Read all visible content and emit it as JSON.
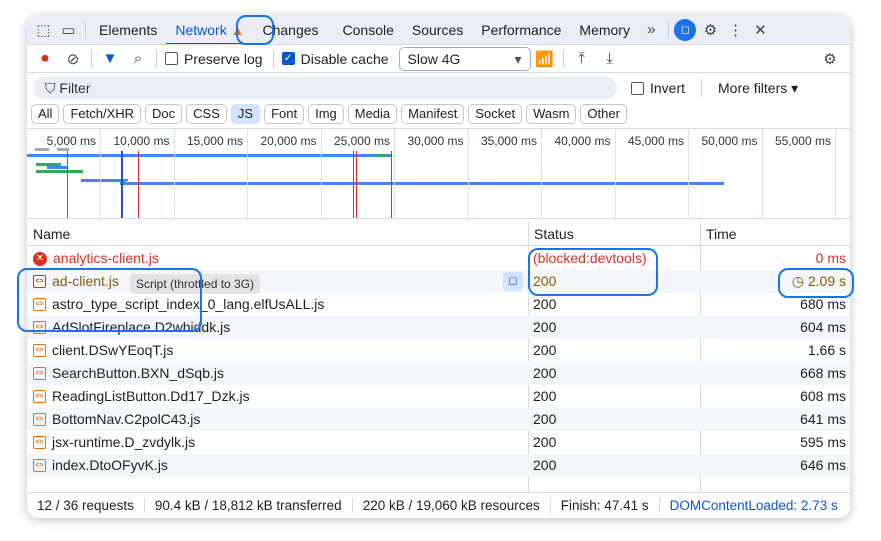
{
  "tabs": [
    "Elements",
    "Network",
    "Changes",
    "Console",
    "Sources",
    "Performance",
    "Memory"
  ],
  "active_tab": "Network",
  "toolbar": {
    "preserve_log": "Preserve log",
    "preserve_checked": false,
    "disable_cache": "Disable cache",
    "disable_checked": true,
    "throttle": "Slow 4G"
  },
  "filter": {
    "placeholder": "Filter",
    "invert": "Invert",
    "more_filters": "More filters"
  },
  "chips": [
    "All",
    "Fetch/XHR",
    "Doc",
    "CSS",
    "JS",
    "Font",
    "Img",
    "Media",
    "Manifest",
    "Socket",
    "Wasm",
    "Other"
  ],
  "active_chip": "JS",
  "overview_ticks": [
    "5,000 ms",
    "10,000 ms",
    "15,000 ms",
    "20,000 ms",
    "25,000 ms",
    "30,000 ms",
    "35,000 ms",
    "40,000 ms",
    "45,000 ms",
    "50,000 ms",
    "55,000 ms"
  ],
  "columns": {
    "name": "Name",
    "status": "Status",
    "time": "Time"
  },
  "rows": [
    {
      "name": "analytics-client.js",
      "status": "(blocked:devtools)",
      "time": "0 ms",
      "kind": "error"
    },
    {
      "name": "ad-client.js",
      "status": "200",
      "time": "2.09 s",
      "kind": "throttled"
    },
    {
      "name": "astro_type_script_index_0_lang.elfUsALL.js",
      "status": "200",
      "time": "680 ms",
      "kind": "script"
    },
    {
      "name": "AdSlotFireplace.D2whiddk.js",
      "status": "200",
      "time": "604 ms",
      "kind": "script"
    },
    {
      "name": "client.DSwYEoqT.js",
      "status": "200",
      "time": "1.66 s",
      "kind": "script"
    },
    {
      "name": "SearchButton.BXN_dSqb.js",
      "status": "200",
      "time": "668 ms",
      "kind": "script"
    },
    {
      "name": "ReadingListButton.Dd17_Dzk.js",
      "status": "200",
      "time": "608 ms",
      "kind": "script"
    },
    {
      "name": "BottomNav.C2polC43.js",
      "status": "200",
      "time": "641 ms",
      "kind": "script"
    },
    {
      "name": "jsx-runtime.D_zvdylk.js",
      "status": "200",
      "time": "595 ms",
      "kind": "script"
    },
    {
      "name": "index.DtoOFyvK.js",
      "status": "200",
      "time": "646 ms",
      "kind": "script"
    }
  ],
  "tooltip": "Script (throttled to 3G)",
  "footer": {
    "requests": "12 / 36 requests",
    "transferred": "90.4 kB / 18,812 kB transferred",
    "resources": "220 kB / 19,060 kB resources",
    "finish": "Finish: 47.41 s",
    "dcl": "DOMContentLoaded: 2.73 s"
  },
  "colors": {
    "accent": "#0b57d0",
    "error": "#d93025",
    "throttled": "#8a5a00",
    "warning": "#e8710a"
  }
}
